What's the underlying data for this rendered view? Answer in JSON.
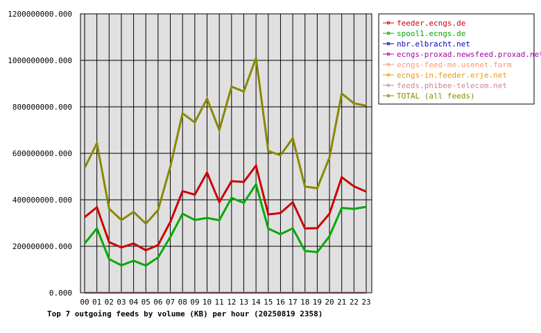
{
  "chart_data": {
    "type": "line",
    "title": "Top 7 outgoing feeds by volume (KB) per hour (20250819 2358)",
    "ylim": [
      0,
      1200000000
    ],
    "yticks": [
      0,
      200000000,
      400000000,
      600000000,
      800000000,
      1000000000,
      1200000000
    ],
    "ytick_labels": [
      "0.000",
      "200000000.000",
      "400000000.000",
      "600000000.000",
      "800000000.000",
      "1000000000.000",
      "1200000000.000"
    ],
    "categories": [
      "00",
      "01",
      "02",
      "03",
      "04",
      "05",
      "06",
      "07",
      "08",
      "09",
      "10",
      "11",
      "12",
      "13",
      "14",
      "15",
      "16",
      "17",
      "18",
      "19",
      "20",
      "21",
      "22",
      "23"
    ],
    "grid": true,
    "legend_position": "right",
    "series": [
      {
        "name": "feeder.ecngs.de",
        "color": "#cc0000",
        "values": [
          325000000,
          368000000,
          218000000,
          195000000,
          212000000,
          183000000,
          205000000,
          305000000,
          437000000,
          422000000,
          517000000,
          390000000,
          480000000,
          477000000,
          547000000,
          337000000,
          343000000,
          390000000,
          277000000,
          278000000,
          340000000,
          497000000,
          458000000,
          435000000
        ]
      },
      {
        "name": "spool1.ecngs.de",
        "color": "#00aa00",
        "values": [
          212000000,
          277000000,
          145000000,
          118000000,
          138000000,
          117000000,
          152000000,
          240000000,
          340000000,
          313000000,
          322000000,
          312000000,
          408000000,
          387000000,
          467000000,
          276000000,
          252000000,
          277000000,
          180000000,
          175000000,
          243000000,
          365000000,
          361000000,
          370000000
        ]
      },
      {
        "name": "nbr.elbracht.net",
        "color": "#0000cc",
        "values": [
          0,
          0,
          0,
          0,
          0,
          0,
          0,
          0,
          0,
          0,
          0,
          0,
          0,
          0,
          0,
          0,
          0,
          0,
          0,
          0,
          0,
          0,
          0,
          0
        ]
      },
      {
        "name": "ecngs-proxad.newsfeed.proxad.net",
        "color": "#aa00aa",
        "values": [
          0,
          0,
          0,
          0,
          0,
          0,
          0,
          0,
          0,
          0,
          0,
          0,
          0,
          0,
          0,
          0,
          0,
          0,
          0,
          0,
          0,
          0,
          0,
          0
        ]
      },
      {
        "name": "ecngs-feed-me.usenet.farm",
        "color": "#ff9977",
        "values": [
          0,
          0,
          0,
          0,
          0,
          0,
          0,
          0,
          0,
          0,
          0,
          0,
          0,
          0,
          0,
          0,
          0,
          0,
          0,
          0,
          0,
          0,
          0,
          0
        ]
      },
      {
        "name": "ecngs-in.feeder.erje.net",
        "color": "#ee9900",
        "values": [
          0,
          0,
          0,
          0,
          0,
          0,
          0,
          0,
          0,
          0,
          0,
          0,
          0,
          0,
          0,
          0,
          0,
          0,
          0,
          0,
          0,
          0,
          0,
          0
        ]
      },
      {
        "name": "feeds.phibee-telecom.net",
        "color": "#cc8899",
        "values": [
          0,
          0,
          0,
          0,
          0,
          0,
          0,
          0,
          0,
          0,
          0,
          0,
          0,
          0,
          0,
          0,
          0,
          0,
          0,
          0,
          0,
          0,
          0,
          0
        ]
      },
      {
        "name": "TOTAL (all feeds)",
        "color": "#888800",
        "values": [
          537000000,
          643000000,
          362000000,
          313000000,
          348000000,
          297000000,
          356000000,
          543000000,
          772000000,
          733000000,
          835000000,
          700000000,
          887000000,
          866000000,
          1010000000,
          610000000,
          592000000,
          665000000,
          457000000,
          450000000,
          582000000,
          857000000,
          815000000,
          805000000
        ]
      }
    ]
  }
}
